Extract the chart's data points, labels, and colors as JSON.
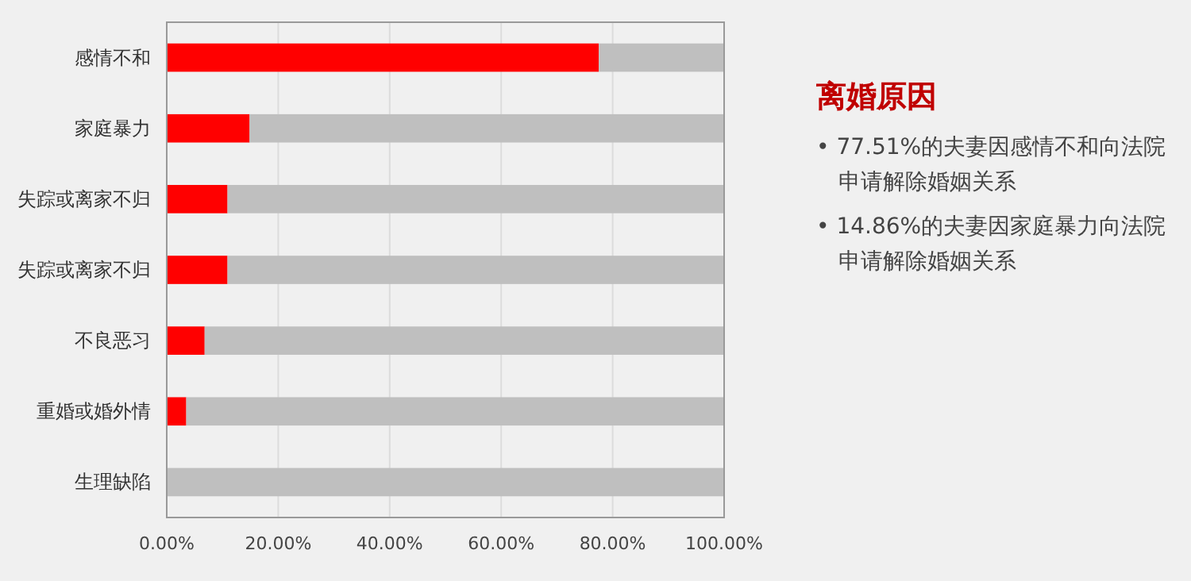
{
  "chart_data": {
    "type": "bar",
    "orientation": "horizontal",
    "stacked": true,
    "title": "离婚原因",
    "categories": [
      "感情不和",
      "家庭暴力",
      "失踪或离家不归",
      "失踪或离家不归",
      "不良恶习",
      "重婚或婚外情",
      "生理缺陷"
    ],
    "series": [
      {
        "color": "#ff0000",
        "values": [
          77.51,
          14.86,
          10.9,
          10.9,
          6.8,
          3.5,
          0
        ]
      },
      {
        "color": "#bfbfbf",
        "values": [
          22.49,
          85.14,
          89.1,
          89.1,
          93.2,
          96.5,
          100
        ]
      }
    ],
    "xlim": [
      0,
      100
    ],
    "xticks": [
      {
        "value": 0,
        "label": "0.00%"
      },
      {
        "value": 20,
        "label": "20.00%"
      },
      {
        "value": 40,
        "label": "40.00%"
      },
      {
        "value": 60,
        "label": "60.00%"
      },
      {
        "value": 80,
        "label": "80.00%"
      },
      {
        "value": 100,
        "label": "100.00%"
      }
    ],
    "grid": "x",
    "annotations": [
      "• 77.51%的夫妻因感情不和向法院申请解除婚姻关系",
      "• 14.86%的夫妻因家庭暴力向法院申请解除婚姻关系"
    ]
  }
}
